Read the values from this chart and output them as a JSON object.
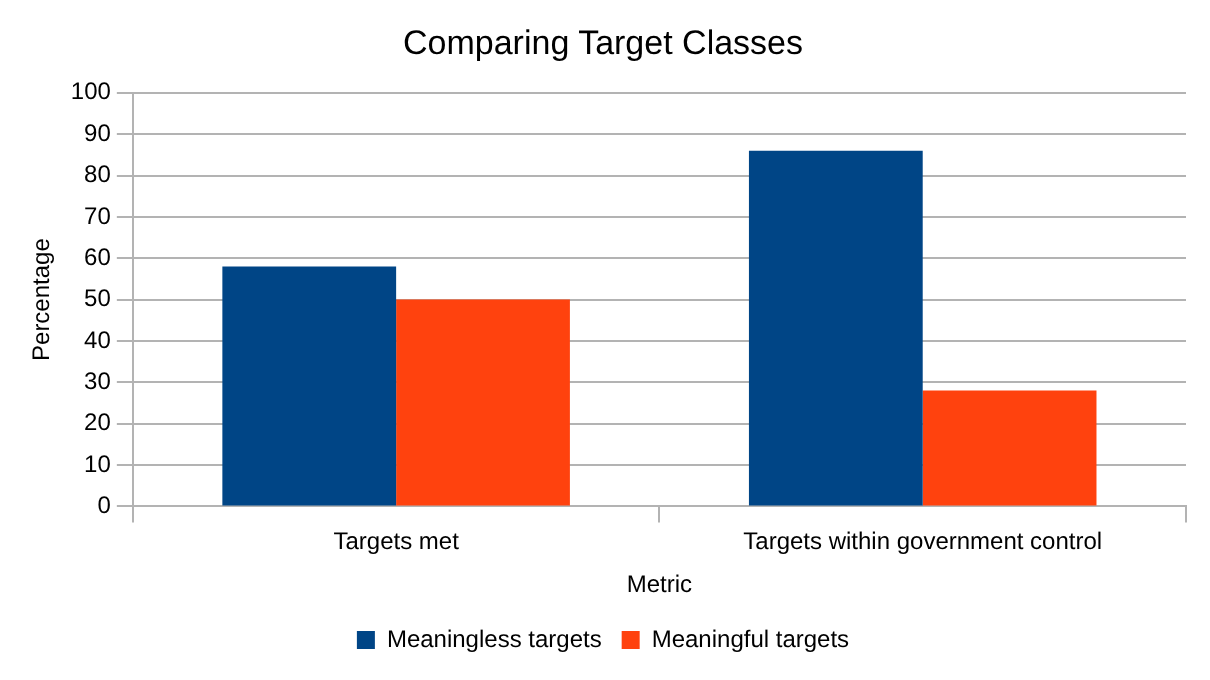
{
  "chart_data": {
    "type": "bar",
    "title": "Comparing Target Classes",
    "xlabel": "Metric",
    "ylabel": "Percentage",
    "categories": [
      "Targets met",
      "Targets within government control"
    ],
    "series": [
      {
        "name": "Meaningless targets",
        "color": "#004586",
        "values": [
          58,
          86
        ]
      },
      {
        "name": "Meaningful targets",
        "color": "#ff420e",
        "values": [
          50,
          28
        ]
      }
    ],
    "ylim": [
      0,
      100
    ],
    "yticks": [
      0,
      10,
      20,
      30,
      40,
      50,
      60,
      70,
      80,
      90,
      100
    ],
    "grid": "y",
    "legend": "bottom"
  }
}
